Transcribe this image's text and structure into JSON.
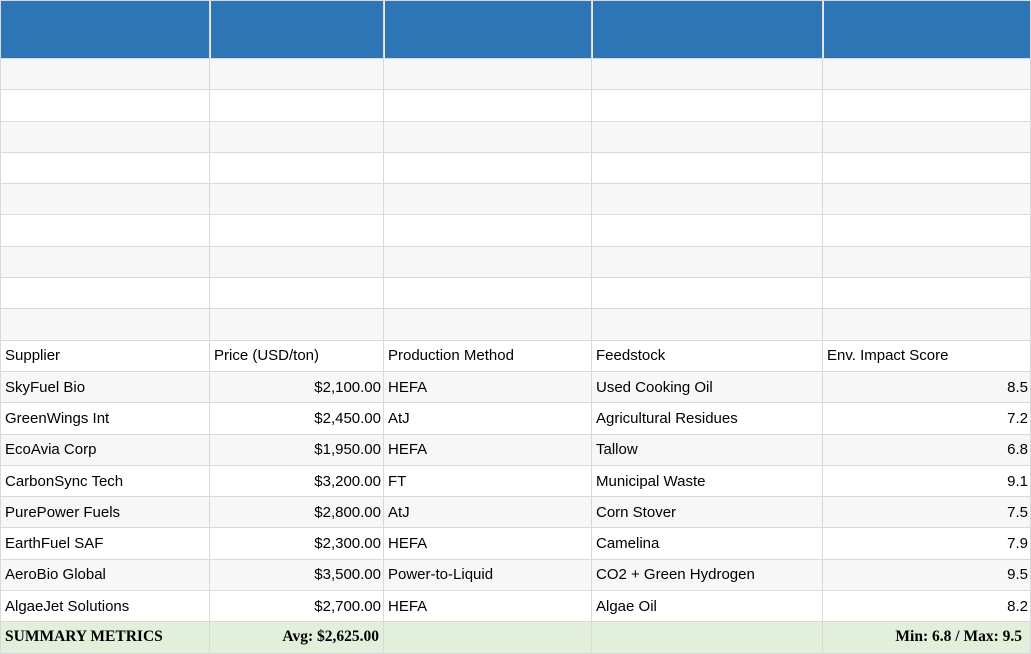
{
  "table": {
    "columns": [
      "Supplier",
      "Price (USD/ton)",
      "Production Method",
      "Feedstock",
      "Env. Impact Score"
    ],
    "rows": [
      {
        "supplier": "SkyFuel Bio",
        "price": "$2,100.00",
        "method": "HEFA",
        "feedstock": "Used Cooking Oil",
        "score": "8.5"
      },
      {
        "supplier": "GreenWings Int",
        "price": "$2,450.00",
        "method": "AtJ",
        "feedstock": "Agricultural Residues",
        "score": "7.2"
      },
      {
        "supplier": "EcoAvia Corp",
        "price": "$1,950.00",
        "method": "HEFA",
        "feedstock": "Tallow",
        "score": "6.8"
      },
      {
        "supplier": "CarbonSync Tech",
        "price": "$3,200.00",
        "method": "FT",
        "feedstock": "Municipal Waste",
        "score": "9.1"
      },
      {
        "supplier": "PurePower Fuels",
        "price": "$2,800.00",
        "method": "AtJ",
        "feedstock": "Corn Stover",
        "score": "7.5"
      },
      {
        "supplier": "EarthFuel SAF",
        "price": "$2,300.00",
        "method": "HEFA",
        "feedstock": "Camelina",
        "score": "7.9"
      },
      {
        "supplier": "AeroBio Global",
        "price": "$3,500.00",
        "method": "Power-to-Liquid",
        "feedstock": "CO2 + Green Hydrogen",
        "score": "9.5"
      },
      {
        "supplier": "AlgaeJet Solutions",
        "price": "$2,700.00",
        "method": "HEFA",
        "feedstock": "Algae Oil",
        "score": "8.2"
      }
    ],
    "summary": {
      "label": "SUMMARY METRICS",
      "avg": "Avg: $2,625.00",
      "min_max": "Min: 6.8 / Max: 9.5"
    },
    "empty_rows_above": 9
  },
  "colors": {
    "header_blue": "#2e75b5",
    "stripe_gray": "#f7f7f7",
    "summary_green": "#e2efda",
    "gridline": "#d9d9d9"
  }
}
